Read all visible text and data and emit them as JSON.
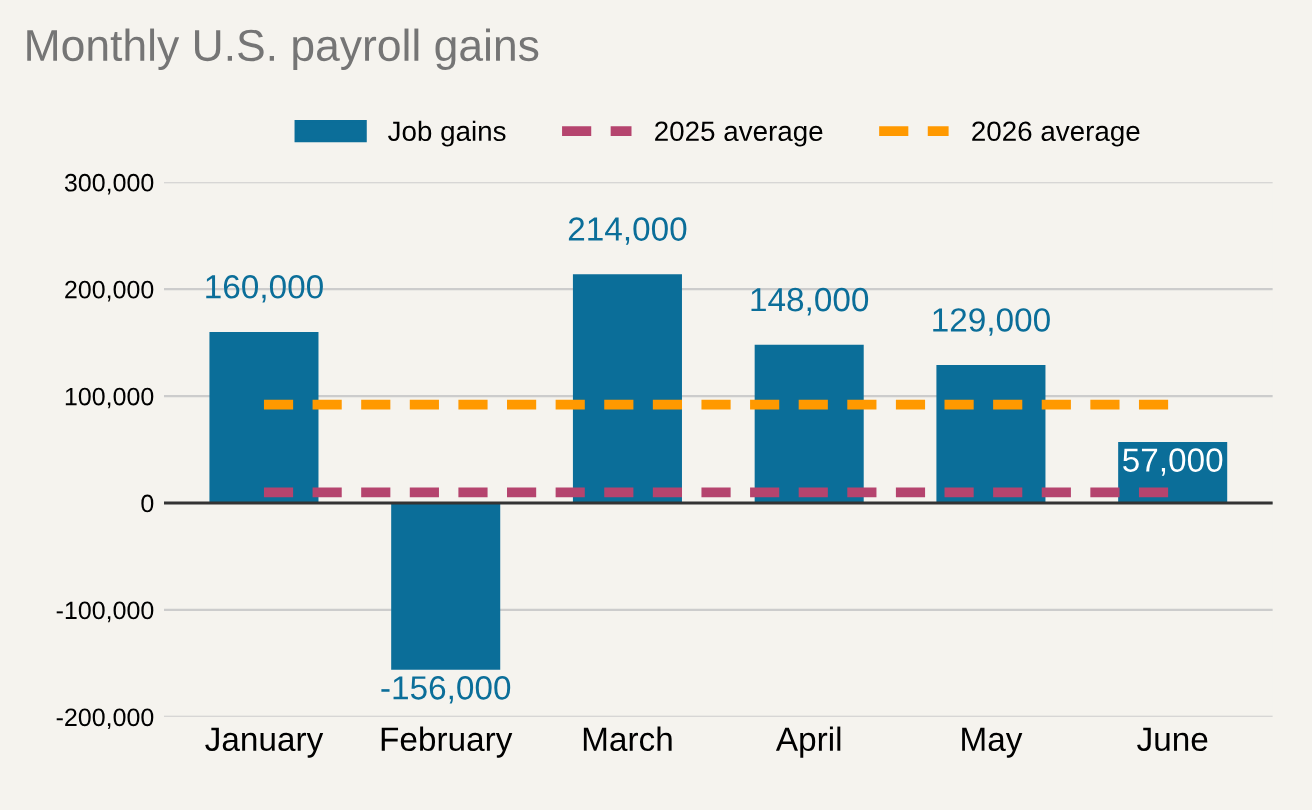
{
  "chart_data": {
    "type": "bar",
    "title": "Monthly U.S. payroll gains",
    "categories": [
      "January",
      "February",
      "March",
      "April",
      "May",
      "June"
    ],
    "series": [
      {
        "name": "Job gains",
        "color": "#0b6e99",
        "values": [
          160000,
          -156000,
          214000,
          148000,
          129000,
          57000
        ],
        "value_labels": [
          "160,000",
          "-156,000",
          "214,000",
          "148,000",
          "129,000",
          "57,000"
        ]
      },
      {
        "name": "2025 average",
        "type": "line",
        "color": "#b5446e",
        "line_style": "dashed",
        "values": [
          10000,
          10000,
          10000,
          10000,
          10000,
          10000
        ]
      },
      {
        "name": "2026 average",
        "type": "line",
        "color": "#ff9900",
        "line_style": "dashed",
        "values": [
          92000,
          92000,
          92000,
          92000,
          92000,
          92000
        ]
      }
    ],
    "ylim": [
      -200000,
      300000
    ],
    "yticks": [
      {
        "value": -200000,
        "label": "-200,000"
      },
      {
        "value": -100000,
        "label": "-100,000"
      },
      {
        "value": 0,
        "label": "0"
      },
      {
        "value": 100000,
        "label": "100,000"
      },
      {
        "value": 200000,
        "label": "200,000"
      },
      {
        "value": 300000,
        "label": "300,000"
      }
    ],
    "grid": "y",
    "legend": "top"
  }
}
